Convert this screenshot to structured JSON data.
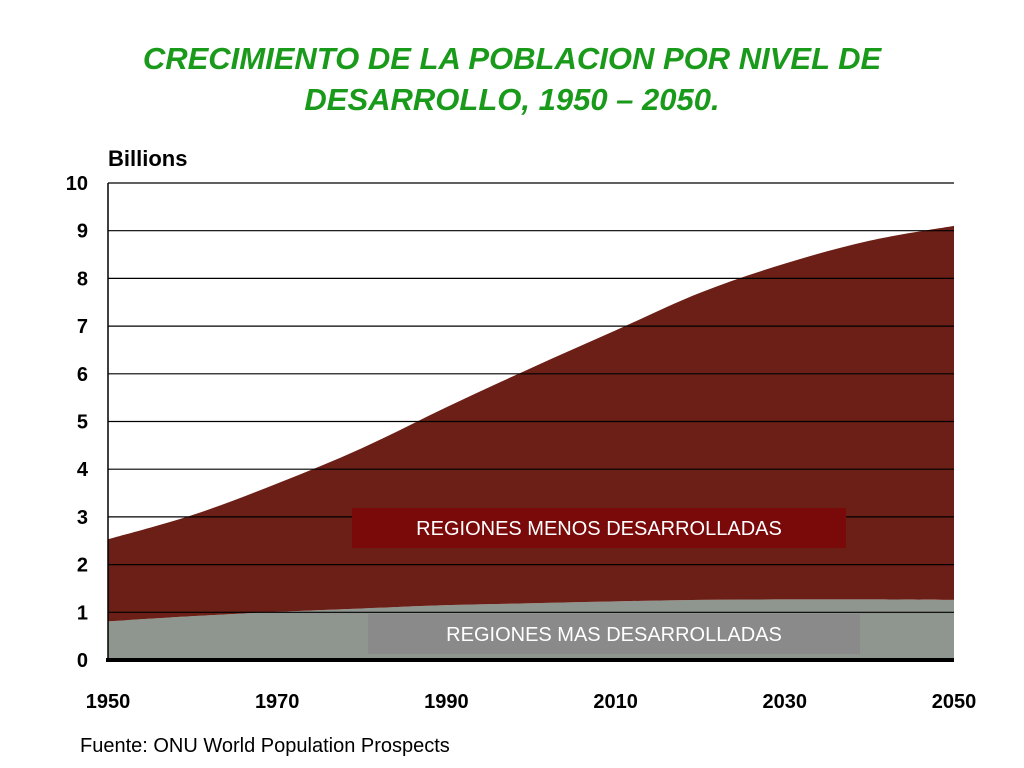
{
  "title": {
    "line1": "CRECIMIENTO DE LA POBLACION POR NIVEL DE",
    "line2": "DESARROLLO, 1950 – 2050."
  },
  "source": "Fuente: ONU World Population Prospects",
  "chart_data": {
    "type": "area",
    "stacked": true,
    "ylabel": "Billions",
    "ylim": [
      0,
      10
    ],
    "xlim": [
      1950,
      2050
    ],
    "y_ticks": [
      "0",
      "1",
      "2",
      "3",
      "4",
      "5",
      "6",
      "7",
      "8",
      "9",
      "10"
    ],
    "x_ticks": [
      "1950",
      "1970",
      "1990",
      "2010",
      "2030",
      "2050"
    ],
    "grid": true,
    "x": [
      1950,
      1960,
      1970,
      1980,
      1990,
      2000,
      2010,
      2020,
      2030,
      2040,
      2050
    ],
    "series": [
      {
        "name": "REGIONES MAS DESARROLLADAS",
        "color": "#8f968f",
        "values": [
          0.81,
          0.92,
          1.01,
          1.08,
          1.15,
          1.19,
          1.23,
          1.26,
          1.27,
          1.27,
          1.26
        ]
      },
      {
        "name": "REGIONES MENOS DESARROLLADAS",
        "color": "#6b1f16",
        "values": [
          1.72,
          2.12,
          2.69,
          3.36,
          4.15,
          4.93,
          5.68,
          6.44,
          7.04,
          7.52,
          7.84
        ]
      }
    ],
    "totals": [
      2.53,
      3.04,
      3.7,
      4.44,
      5.3,
      6.12,
      6.91,
      7.7,
      8.31,
      8.79,
      9.1
    ]
  }
}
